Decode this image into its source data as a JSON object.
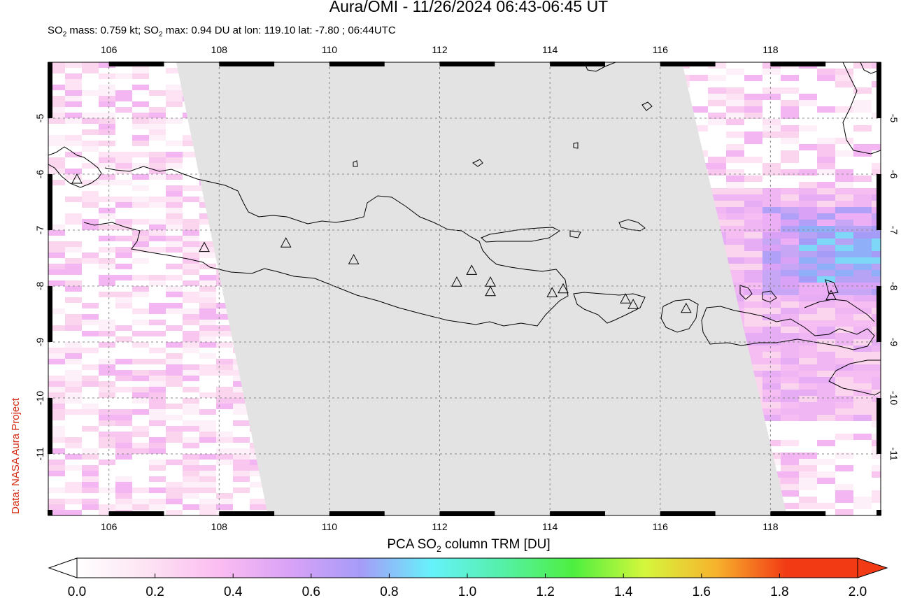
{
  "title": "Aura/OMI - 11/26/2024 06:43-06:45 UT",
  "subtitle": {
    "p1": "SO",
    "sub1": "2",
    "p2": " mass: 0.759 kt; SO",
    "sub2": "2",
    "p3": " max: 0.94 DU at lon: 119.10 lat: -7.80 ; 06:44UTC"
  },
  "credit": "Data: NASA Aura Project",
  "colorbar": {
    "label_prefix": "PCA SO",
    "label_sub": "2",
    "label_suffix": " column TRM [DU]",
    "ticks": [
      "0.0",
      "0.2",
      "0.4",
      "0.6",
      "0.8",
      "1.0",
      "1.2",
      "1.4",
      "1.6",
      "1.8",
      "2.0"
    ],
    "colors": [
      "#ffffff",
      "#fde3f3",
      "#fbbdf1",
      "#d9a2f7",
      "#a59cf8",
      "#66f2fa",
      "#55f0a8",
      "#4eef3f",
      "#d5f73c",
      "#f7b32d",
      "#f23a14",
      "#f23a14"
    ]
  },
  "map": {
    "lon_ticks": [
      "106",
      "108",
      "110",
      "112",
      "114",
      "116",
      "118"
    ],
    "lat_ticks": [
      "-5",
      "-6",
      "-7",
      "-8",
      "-9",
      "-10",
      "-11"
    ],
    "lon_range": [
      104.9,
      120.0
    ],
    "lat_range": [
      -12.1,
      -4.0
    ],
    "grid": true,
    "nodata_color": "#e3e3e3",
    "volcanoes": [
      {
        "lon": 105.42,
        "lat": -6.1
      },
      {
        "lon": 107.73,
        "lat": -7.32
      },
      {
        "lon": 109.21,
        "lat": -7.24
      },
      {
        "lon": 110.44,
        "lat": -7.54
      },
      {
        "lon": 112.31,
        "lat": -7.94
      },
      {
        "lon": 112.58,
        "lat": -7.73
      },
      {
        "lon": 112.92,
        "lat": -7.94
      },
      {
        "lon": 112.92,
        "lat": -8.11
      },
      {
        "lon": 114.04,
        "lat": -8.13
      },
      {
        "lon": 114.24,
        "lat": -8.06
      },
      {
        "lon": 115.37,
        "lat": -8.24
      },
      {
        "lon": 115.51,
        "lat": -8.34
      },
      {
        "lon": 116.47,
        "lat": -8.41
      },
      {
        "lon": 119.1,
        "lat": -8.18
      }
    ]
  }
}
